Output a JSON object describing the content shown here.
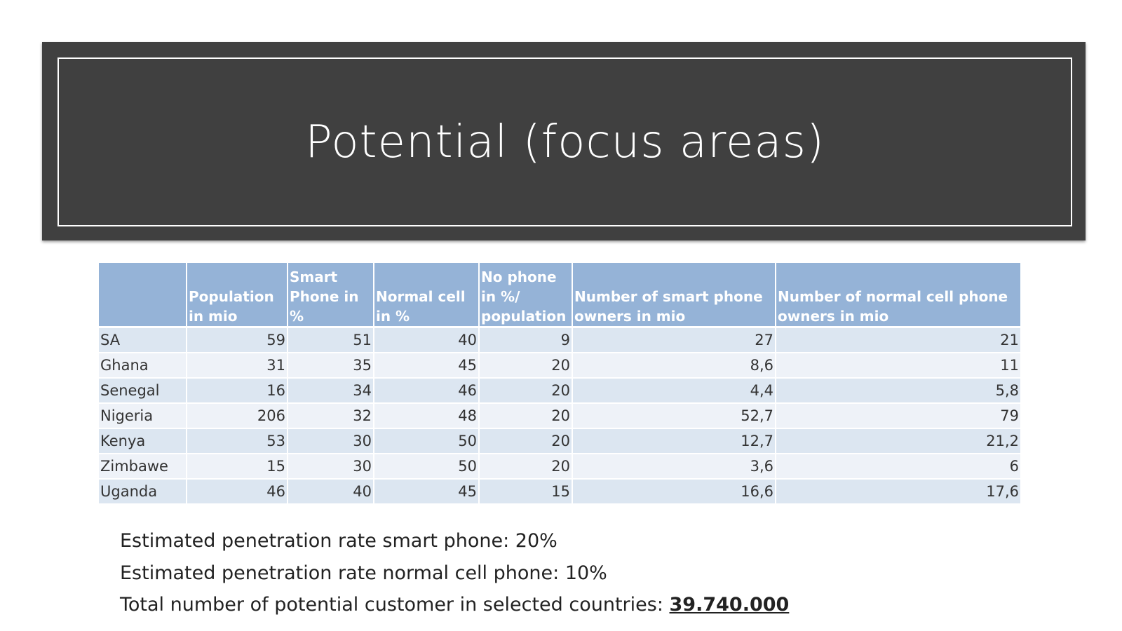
{
  "header": {
    "title": "Potential (focus areas)"
  },
  "table": {
    "columns": [
      "Population in mio",
      "Smart Phone in %",
      "Normal cell in %",
      "No phone in %/ population",
      "Number of smart phone owners in mio",
      "Number of normal cell phone owners in mio"
    ],
    "rows": [
      [
        "SA",
        "59",
        "51",
        "40",
        "9",
        "27",
        "21"
      ],
      [
        "Ghana",
        "31",
        "35",
        "45",
        "20",
        "8,6",
        "11"
      ],
      [
        "Senegal",
        "16",
        "34",
        "46",
        "20",
        "4,4",
        "5,8"
      ],
      [
        "Nigeria",
        "206",
        "32",
        "48",
        "20",
        "52,7",
        "79"
      ],
      [
        "Kenya",
        "53",
        "30",
        "50",
        "20",
        "12,7",
        "21,2"
      ],
      [
        "Zimbawe",
        "15",
        "30",
        "50",
        "20",
        "3,6",
        "6"
      ],
      [
        "Uganda",
        "46",
        "40",
        "45",
        "15",
        "16,6",
        "17,6"
      ]
    ]
  },
  "notes": {
    "line1": "Estimated penetration rate smart phone: 20%",
    "line2": "Estimated penetration rate normal cell phone: 10%",
    "line3": {
      "text": "Total number of potential customer in selected countries:",
      "bold": "39.740.000"
    }
  }
}
